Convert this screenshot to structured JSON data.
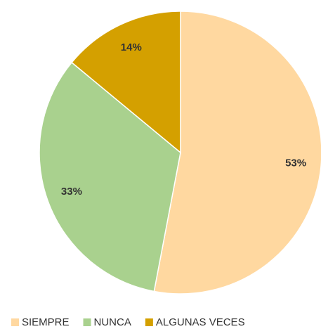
{
  "chart_data": {
    "type": "pie",
    "categories": [
      "SIEMPRE",
      "NUNCA",
      "ALGUNAS VECES"
    ],
    "values": [
      53,
      33,
      14
    ],
    "value_labels": [
      "53%",
      "33%",
      "14%"
    ],
    "colors": [
      "#FFD8A0",
      "#A9D18E",
      "#D4A000"
    ],
    "legend": "bottom"
  }
}
